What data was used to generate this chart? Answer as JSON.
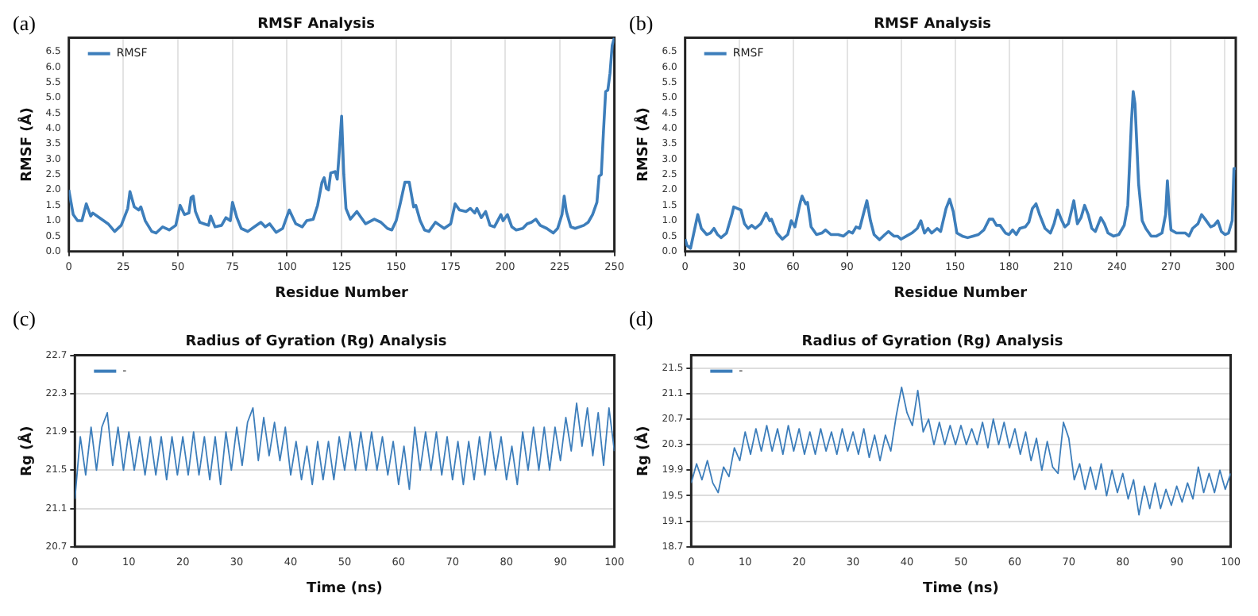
{
  "chart_data": [
    {
      "type": "line",
      "title": "RMSF Analysis",
      "xlabel": "Residue Number",
      "ylabel": "RMSF (Å)",
      "annotations": [
        "(a)"
      ],
      "legend": "top left",
      "grid": "x",
      "xlim": [
        0,
        250
      ],
      "xticks": [
        0,
        25,
        50,
        75,
        100,
        125,
        150,
        175,
        200,
        225,
        250
      ],
      "ylim": [
        0,
        6.95
      ],
      "yticks": [
        {
          "value": 0,
          "label": "0.0"
        },
        0.5,
        {
          "value": 1,
          "label": "1.0"
        },
        1.5,
        {
          "value": 2,
          "label": "2.0"
        },
        2.5,
        {
          "value": 3,
          "label": "3.0"
        },
        3.5,
        {
          "value": 4,
          "label": "4.0"
        },
        4.5,
        {
          "value": 5,
          "label": "5.0"
        },
        5.5,
        {
          "value": 6,
          "label": "6.0"
        },
        6.5
      ],
      "x": [
        0,
        2,
        4,
        6,
        8,
        10,
        11,
        14,
        18,
        21,
        24,
        27,
        28,
        30,
        32,
        33,
        35,
        38,
        40,
        43,
        46,
        49,
        51,
        53,
        55,
        56,
        57,
        58,
        60,
        62,
        64,
        65,
        67,
        70,
        72,
        74,
        75,
        77,
        79,
        82,
        85,
        88,
        90,
        92,
        95,
        98,
        101,
        104,
        107,
        109,
        112,
        114,
        116,
        117,
        118,
        119,
        120,
        122,
        123,
        124,
        125,
        126,
        127,
        129,
        132,
        134,
        136,
        140,
        143,
        146,
        148,
        150,
        152,
        154,
        156,
        158,
        159,
        161,
        163,
        165,
        168,
        170,
        172,
        175,
        177,
        179,
        182,
        184,
        186,
        187,
        189,
        191,
        193,
        195,
        198,
        199,
        201,
        203,
        205,
        208,
        210,
        212,
        214,
        216,
        219,
        222,
        224,
        226,
        227,
        228,
        230,
        232,
        236,
        238,
        240,
        242,
        243,
        244,
        245,
        246,
        247,
        248,
        249,
        250
      ],
      "series": [
        {
          "name": "RMSF",
          "color": "#3d7ebb",
          "values": [
            2.0,
            1.2,
            1.0,
            1.0,
            1.55,
            1.15,
            1.25,
            1.1,
            0.9,
            0.65,
            0.85,
            1.4,
            1.95,
            1.45,
            1.35,
            1.45,
            1.0,
            0.65,
            0.6,
            0.8,
            0.7,
            0.85,
            1.5,
            1.2,
            1.25,
            1.75,
            1.8,
            1.3,
            0.95,
            0.9,
            0.85,
            1.15,
            0.8,
            0.85,
            1.1,
            1.0,
            1.6,
            1.1,
            0.75,
            0.65,
            0.8,
            0.95,
            0.8,
            0.9,
            0.62,
            0.75,
            1.35,
            0.9,
            0.8,
            1.0,
            1.05,
            1.5,
            2.25,
            2.4,
            2.05,
            2.0,
            2.55,
            2.6,
            2.35,
            3.3,
            4.4,
            2.5,
            1.4,
            1.05,
            1.3,
            1.1,
            0.9,
            1.05,
            0.95,
            0.75,
            0.7,
            1.0,
            1.6,
            2.25,
            2.25,
            1.45,
            1.5,
            1.0,
            0.7,
            0.65,
            0.95,
            0.85,
            0.75,
            0.9,
            1.55,
            1.35,
            1.3,
            1.4,
            1.25,
            1.4,
            1.1,
            1.3,
            0.85,
            0.8,
            1.2,
            1.0,
            1.2,
            0.8,
            0.7,
            0.75,
            0.9,
            0.95,
            1.05,
            0.85,
            0.75,
            0.6,
            0.75,
            1.2,
            1.8,
            1.3,
            0.8,
            0.75,
            0.85,
            0.95,
            1.2,
            1.6,
            2.45,
            2.5,
            3.9,
            5.2,
            5.25,
            5.8,
            6.7,
            6.95
          ]
        }
      ]
    },
    {
      "type": "line",
      "title": "RMSF Analysis",
      "xlabel": "Residue Number",
      "ylabel": "RMSF (Å)",
      "annotations": [
        "(b)"
      ],
      "legend": "top left",
      "grid": "x",
      "xlim": [
        0,
        306
      ],
      "xticks": [
        0,
        30,
        60,
        90,
        120,
        150,
        180,
        210,
        240,
        270,
        300
      ],
      "ylim": [
        0,
        6.95
      ],
      "yticks": [
        {
          "value": 0,
          "label": "0.0"
        },
        0.5,
        {
          "value": 1,
          "label": "1.0"
        },
        1.5,
        {
          "value": 2,
          "label": "2.0"
        },
        2.5,
        {
          "value": 3,
          "label": "3.0"
        },
        3.5,
        {
          "value": 4,
          "label": "4.0"
        },
        4.5,
        {
          "value": 5,
          "label": "5.0"
        },
        5.5,
        {
          "value": 6,
          "label": "6.0"
        },
        6.5
      ],
      "x": [
        0,
        1,
        3,
        5,
        7,
        9,
        12,
        14,
        16,
        18,
        20,
        23,
        26,
        27,
        29,
        31,
        33,
        35,
        37,
        39,
        42,
        45,
        47,
        48,
        51,
        54,
        57,
        59,
        61,
        64,
        65,
        67,
        68,
        70,
        73,
        76,
        78,
        81,
        85,
        88,
        91,
        93,
        95,
        97,
        99,
        101,
        103,
        105,
        108,
        111,
        113,
        116,
        118,
        120,
        123,
        126,
        129,
        131,
        133,
        135,
        137,
        140,
        142,
        145,
        147,
        149,
        151,
        154,
        157,
        160,
        163,
        166,
        169,
        171,
        173,
        175,
        178,
        180,
        182,
        184,
        186,
        189,
        191,
        193,
        195,
        197,
        200,
        203,
        205,
        207,
        209,
        211,
        213,
        215,
        216,
        218,
        220,
        222,
        224,
        226,
        228,
        231,
        233,
        235,
        238,
        241,
        244,
        246,
        248,
        249,
        250,
        252,
        254,
        256,
        259,
        262,
        265,
        267,
        268,
        269,
        270,
        273,
        276,
        278,
        280,
        282,
        285,
        287,
        289,
        292,
        294,
        296,
        298,
        300,
        302,
        304,
        305,
        306
      ],
      "series": [
        {
          "name": "RMSF",
          "color": "#3d7ebb",
          "values": [
            0.4,
            0.2,
            0.1,
            0.65,
            1.2,
            0.75,
            0.55,
            0.6,
            0.75,
            0.55,
            0.45,
            0.6,
            1.2,
            1.45,
            1.4,
            1.35,
            0.9,
            0.75,
            0.85,
            0.75,
            0.9,
            1.25,
            1.0,
            1.05,
            0.6,
            0.4,
            0.55,
            1.0,
            0.8,
            1.6,
            1.8,
            1.55,
            1.6,
            0.8,
            0.55,
            0.6,
            0.7,
            0.55,
            0.55,
            0.5,
            0.65,
            0.6,
            0.8,
            0.75,
            1.2,
            1.65,
            1.0,
            0.55,
            0.38,
            0.55,
            0.65,
            0.5,
            0.5,
            0.4,
            0.5,
            0.6,
            0.75,
            1.0,
            0.6,
            0.75,
            0.6,
            0.75,
            0.65,
            1.4,
            1.7,
            1.3,
            0.6,
            0.5,
            0.45,
            0.5,
            0.55,
            0.7,
            1.05,
            1.05,
            0.85,
            0.85,
            0.6,
            0.55,
            0.7,
            0.55,
            0.75,
            0.8,
            0.95,
            1.4,
            1.55,
            1.2,
            0.75,
            0.6,
            0.9,
            1.35,
            1.05,
            0.8,
            0.9,
            1.4,
            1.65,
            0.9,
            1.1,
            1.5,
            1.2,
            0.75,
            0.65,
            1.1,
            0.9,
            0.6,
            0.5,
            0.55,
            0.85,
            1.5,
            4.2,
            5.2,
            4.8,
            2.2,
            1.0,
            0.75,
            0.5,
            0.5,
            0.6,
            1.2,
            2.3,
            1.4,
            0.7,
            0.6,
            0.6,
            0.6,
            0.5,
            0.75,
            0.9,
            1.2,
            1.05,
            0.8,
            0.85,
            1.0,
            0.65,
            0.55,
            0.6,
            1.0,
            2.7,
            2.7
          ]
        }
      ]
    },
    {
      "type": "line",
      "title": "Radius of Gyration (Rg) Analysis",
      "xlabel": "Time (ns)",
      "ylabel": "Rg (Å)",
      "annotations": [
        "(c)"
      ],
      "legend": "top left",
      "grid": "y",
      "xlim": [
        0,
        100
      ],
      "xticks": [
        0,
        10,
        20,
        30,
        40,
        50,
        60,
        70,
        80,
        90,
        100
      ],
      "ylim": [
        20.7,
        22.7
      ],
      "yticks": [
        20.7,
        21.1,
        21.5,
        21.9,
        22.3,
        22.7
      ],
      "x": [
        0,
        1,
        2,
        3,
        4,
        5,
        6,
        7,
        8,
        9,
        10,
        11,
        12,
        13,
        14,
        15,
        16,
        17,
        18,
        19,
        20,
        21,
        22,
        23,
        24,
        25,
        26,
        27,
        28,
        29,
        30,
        31,
        32,
        33,
        34,
        35,
        36,
        37,
        38,
        39,
        40,
        41,
        42,
        43,
        44,
        45,
        46,
        47,
        48,
        49,
        50,
        51,
        52,
        53,
        54,
        55,
        56,
        57,
        58,
        59,
        60,
        61,
        62,
        63,
        64,
        65,
        66,
        67,
        68,
        69,
        70,
        71,
        72,
        73,
        74,
        75,
        76,
        77,
        78,
        79,
        80,
        81,
        82,
        83,
        84,
        85,
        86,
        87,
        88,
        89,
        90,
        91,
        92,
        93,
        94,
        95,
        96,
        97,
        98,
        99,
        100
      ],
      "series": [
        {
          "name": "-",
          "color": "#3d7ebb",
          "values": [
            21.2,
            21.85,
            21.45,
            21.95,
            21.5,
            21.95,
            22.1,
            21.55,
            21.95,
            21.5,
            21.9,
            21.5,
            21.85,
            21.45,
            21.85,
            21.45,
            21.85,
            21.4,
            21.85,
            21.45,
            21.85,
            21.45,
            21.9,
            21.45,
            21.85,
            21.4,
            21.85,
            21.35,
            21.9,
            21.5,
            21.95,
            21.55,
            22.0,
            22.15,
            21.6,
            22.05,
            21.65,
            22.0,
            21.6,
            21.95,
            21.45,
            21.8,
            21.4,
            21.75,
            21.35,
            21.8,
            21.4,
            21.8,
            21.4,
            21.85,
            21.5,
            21.9,
            21.5,
            21.9,
            21.5,
            21.9,
            21.5,
            21.85,
            21.45,
            21.8,
            21.35,
            21.75,
            21.3,
            21.95,
            21.5,
            21.9,
            21.5,
            21.9,
            21.45,
            21.85,
            21.4,
            21.8,
            21.35,
            21.8,
            21.4,
            21.85,
            21.45,
            21.9,
            21.5,
            21.85,
            21.4,
            21.75,
            21.35,
            21.9,
            21.5,
            21.95,
            21.5,
            21.95,
            21.5,
            21.95,
            21.6,
            22.05,
            21.7,
            22.2,
            21.75,
            22.15,
            21.65,
            22.1,
            21.55,
            22.15,
            21.7
          ]
        }
      ]
    },
    {
      "type": "line",
      "title": "Radius of Gyration (Rg) Analysis",
      "xlabel": "Time (ns)",
      "ylabel": "Rg (Å)",
      "annotations": [
        "(d)"
      ],
      "legend": "top left",
      "grid": "y",
      "xlim": [
        0,
        100
      ],
      "xticks": [
        0,
        10,
        20,
        30,
        40,
        50,
        60,
        70,
        80,
        90,
        100
      ],
      "ylim": [
        18.7,
        21.7
      ],
      "yticks": [
        18.7,
        19.1,
        19.5,
        19.9,
        20.3,
        20.7,
        21.1,
        21.5
      ],
      "x": [
        0,
        1,
        2,
        3,
        4,
        5,
        6,
        7,
        8,
        9,
        10,
        11,
        12,
        13,
        14,
        15,
        16,
        17,
        18,
        19,
        20,
        21,
        22,
        23,
        24,
        25,
        26,
        27,
        28,
        29,
        30,
        31,
        32,
        33,
        34,
        35,
        36,
        37,
        38,
        39,
        40,
        41,
        42,
        43,
        44,
        45,
        46,
        47,
        48,
        49,
        50,
        51,
        52,
        53,
        54,
        55,
        56,
        57,
        58,
        59,
        60,
        61,
        62,
        63,
        64,
        65,
        66,
        67,
        68,
        69,
        70,
        71,
        72,
        73,
        74,
        75,
        76,
        77,
        78,
        79,
        80,
        81,
        82,
        83,
        84,
        85,
        86,
        87,
        88,
        89,
        90,
        91,
        92,
        93,
        94,
        95,
        96,
        97,
        98,
        99,
        100
      ],
      "series": [
        {
          "name": "-",
          "color": "#3d7ebb",
          "values": [
            19.7,
            20.0,
            19.75,
            20.05,
            19.7,
            19.55,
            19.95,
            19.8,
            20.25,
            20.05,
            20.5,
            20.15,
            20.55,
            20.2,
            20.6,
            20.2,
            20.55,
            20.15,
            20.6,
            20.2,
            20.55,
            20.15,
            20.5,
            20.15,
            20.55,
            20.2,
            20.5,
            20.15,
            20.55,
            20.2,
            20.5,
            20.15,
            20.55,
            20.1,
            20.45,
            20.05,
            20.45,
            20.2,
            20.75,
            21.2,
            20.8,
            20.6,
            21.15,
            20.5,
            20.7,
            20.3,
            20.65,
            20.3,
            20.6,
            20.3,
            20.6,
            20.3,
            20.55,
            20.3,
            20.65,
            20.25,
            20.7,
            20.3,
            20.65,
            20.25,
            20.55,
            20.15,
            20.5,
            20.05,
            20.4,
            19.9,
            20.35,
            19.95,
            19.85,
            20.65,
            20.4,
            19.75,
            20.0,
            19.6,
            19.95,
            19.6,
            20.0,
            19.5,
            19.9,
            19.55,
            19.85,
            19.45,
            19.75,
            19.2,
            19.65,
            19.3,
            19.7,
            19.3,
            19.6,
            19.35,
            19.65,
            19.4,
            19.7,
            19.45,
            19.95,
            19.55,
            19.85,
            19.55,
            19.9,
            19.6,
            19.85
          ]
        }
      ]
    }
  ]
}
